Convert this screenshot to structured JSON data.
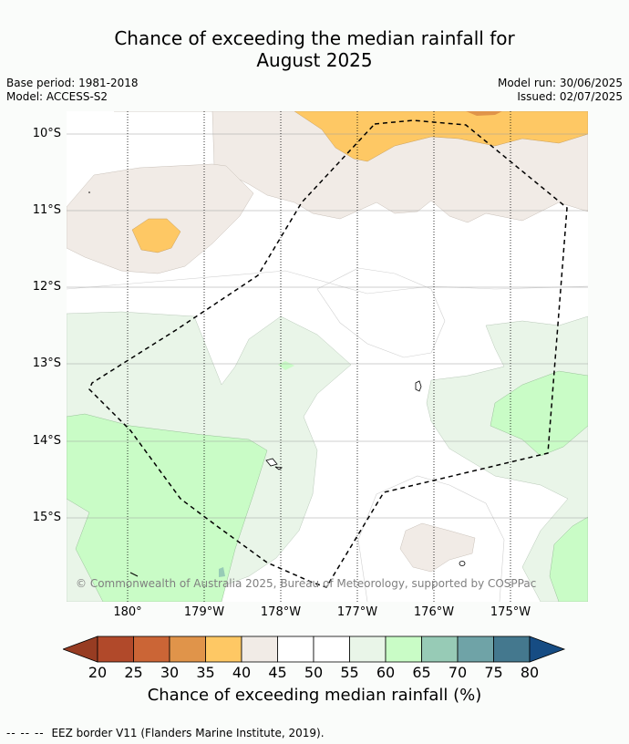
{
  "title": {
    "line1": "Chance of exceeding the median rainfall for",
    "line2": "August 2025"
  },
  "meta": {
    "base_period": "Base period: 1981-2018",
    "model": "Model: ACCESS-S2",
    "model_run": "Model run: 30/06/2025",
    "issued": "Issued: 02/07/2025"
  },
  "map": {
    "copyright": "© Commonwealth of Australia 2025, Bureau of Meteorology, supported by COSPPac",
    "lat_labels": [
      "10°S",
      "11°S",
      "12°S",
      "13°S",
      "14°S",
      "15°S"
    ],
    "lon_labels": [
      "180°",
      "179°W",
      "178°W",
      "177°W",
      "176°W",
      "175°W"
    ]
  },
  "colorbar": {
    "title": "Chance of exceeding median rainfall (%)",
    "ticks": [
      "20",
      "25",
      "30",
      "35",
      "40",
      "45",
      "50",
      "55",
      "60",
      "65",
      "70",
      "75",
      "80"
    ],
    "colors": [
      "#973c22",
      "#b1492a",
      "#cb6536",
      "#e0944a",
      "#fec864",
      "#f1ebe6",
      "#ffffff",
      "#ffffff",
      "#e9f5e8",
      "#c9fcc6",
      "#97cbb6",
      "#6fa3a7",
      "#44788e",
      "#164c83"
    ]
  },
  "legend": {
    "dash": "-- -- --",
    "text": "EEZ border V11 (Flanders Marine Institute, 2019)."
  }
}
